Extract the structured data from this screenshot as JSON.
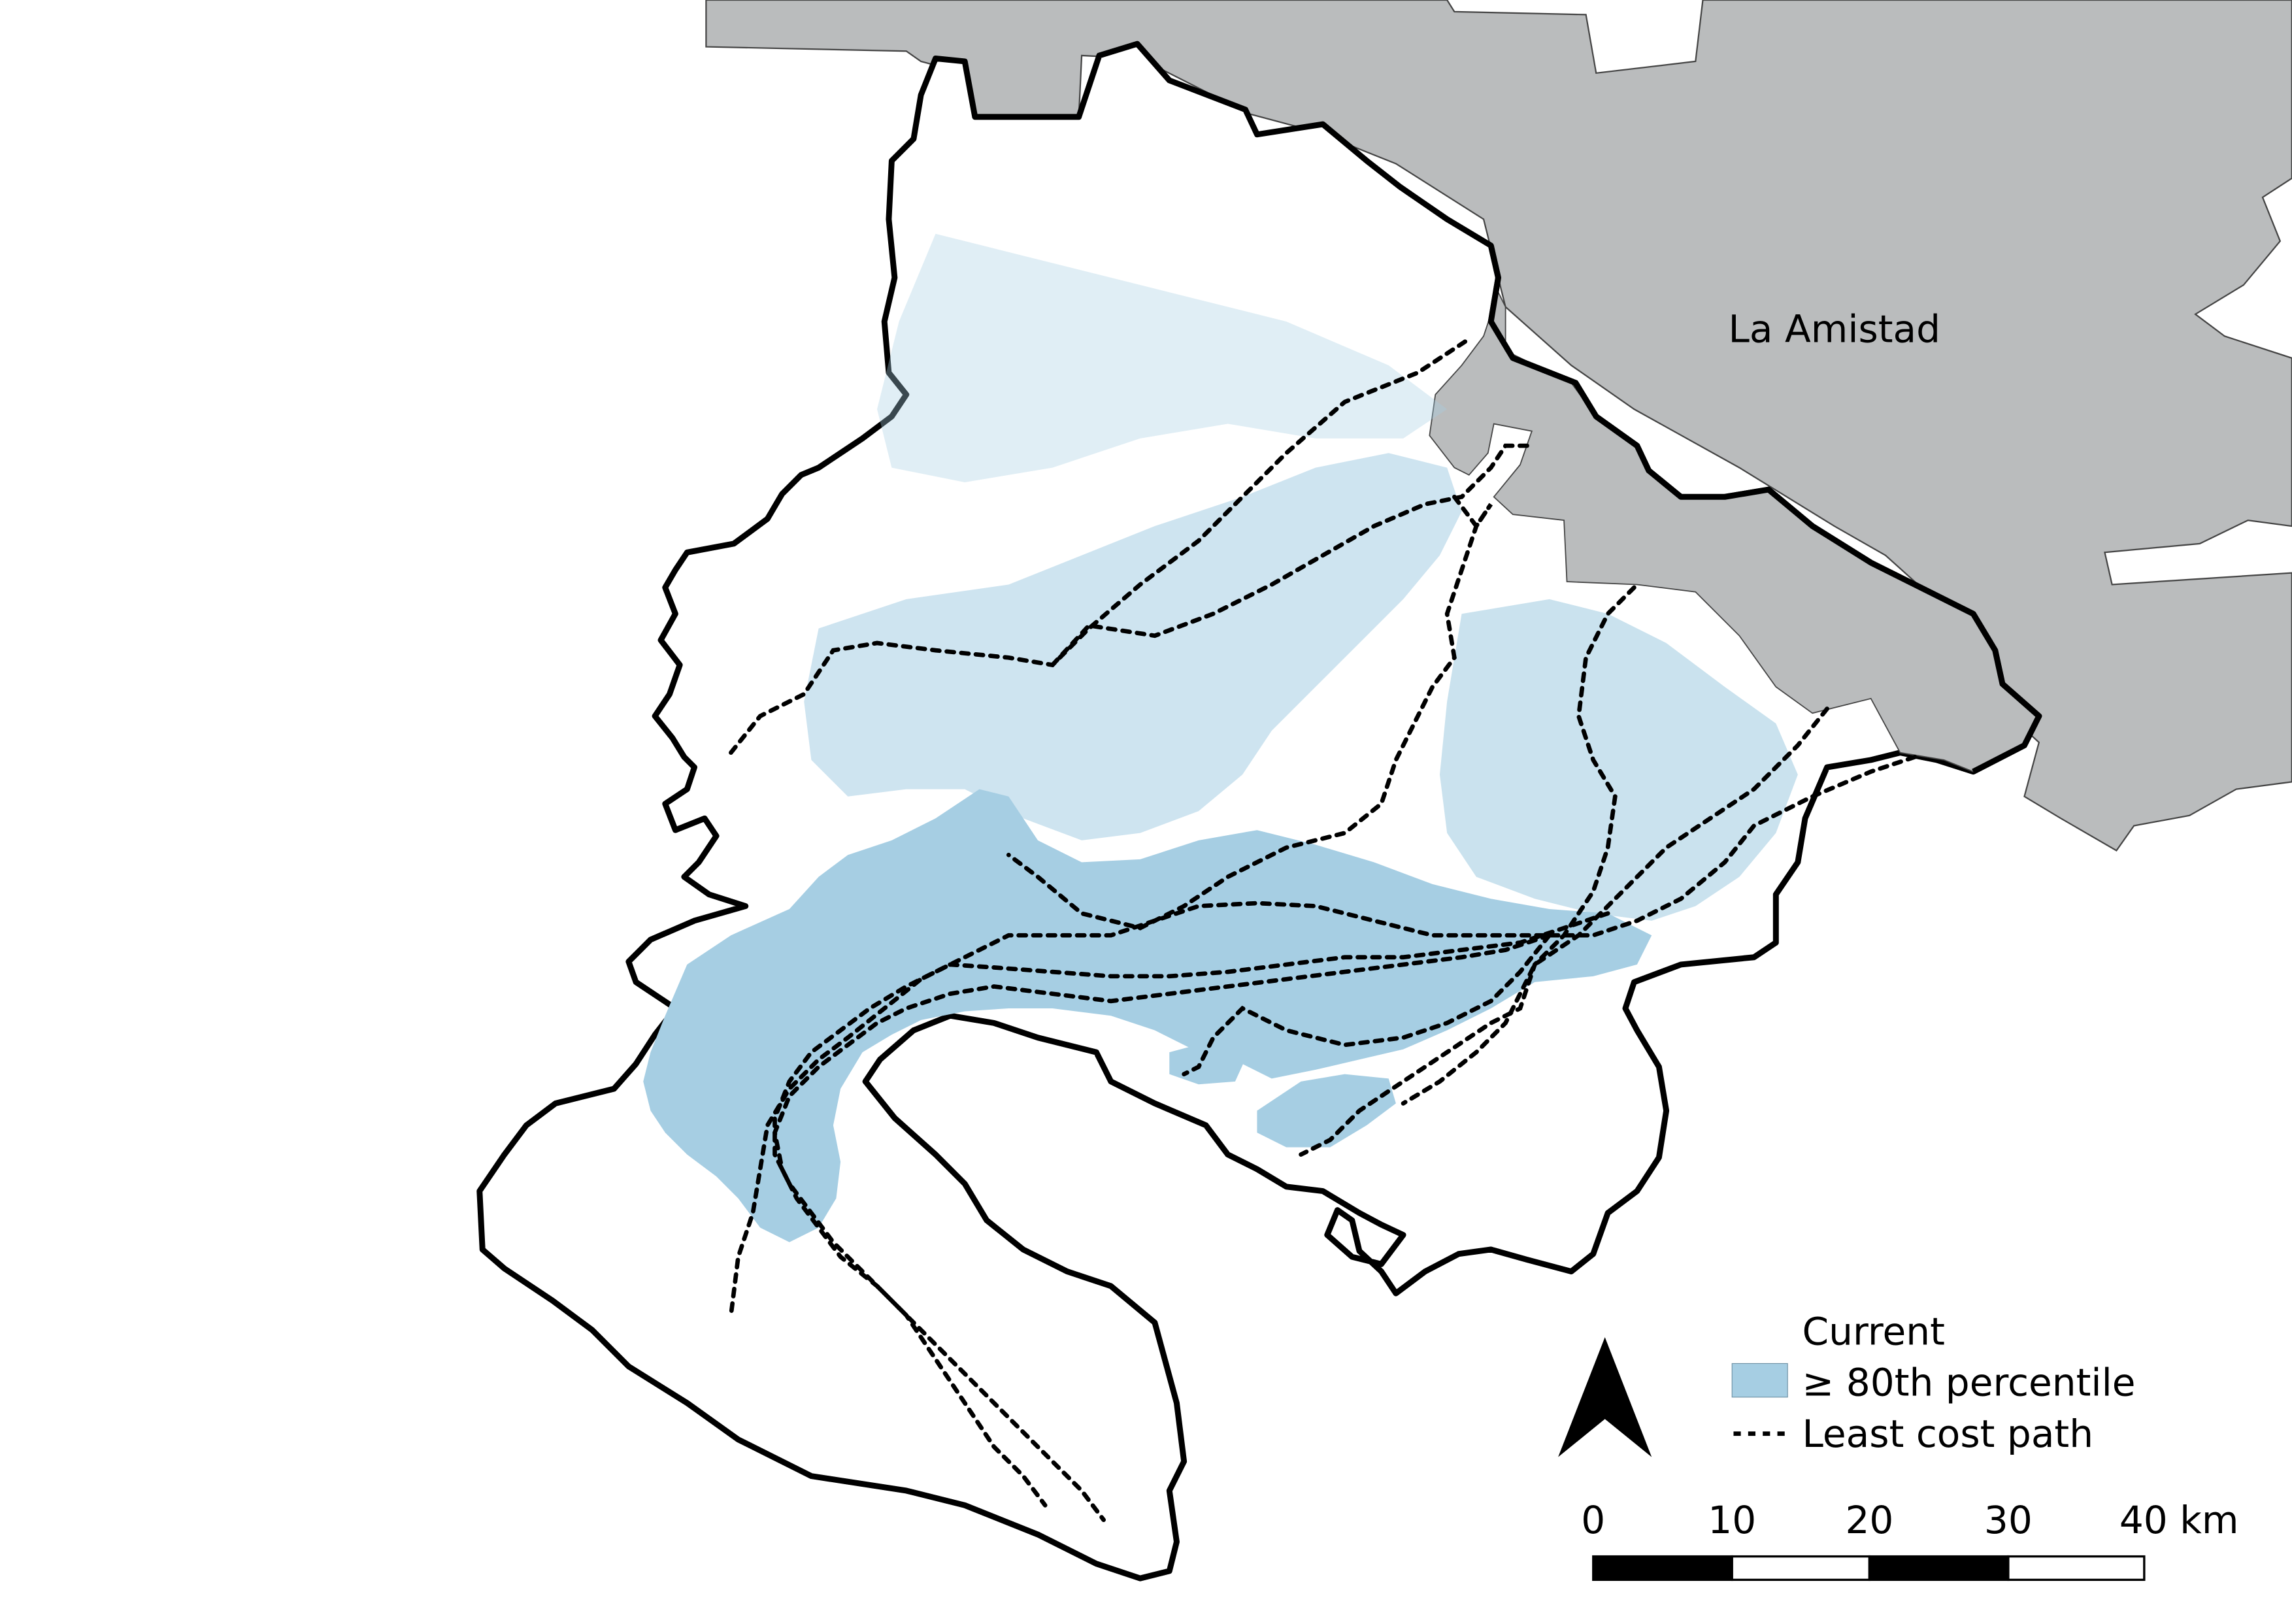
{
  "map": {
    "region_label": "La Amistad",
    "legend": {
      "title": "Current",
      "items": [
        {
          "label": "≥ 80th percentile",
          "symbol": "fill",
          "color": "#a6cee3"
        },
        {
          "label": "Least cost path",
          "symbol": "dashed-line",
          "color": "#000000"
        }
      ]
    },
    "north_arrow": {
      "icon": "north-arrow-icon"
    },
    "scale_bar": {
      "tick_labels": [
        "0",
        "10",
        "20",
        "30",
        "40 km"
      ],
      "segments": 4
    },
    "colors": {
      "protected_area": "#babcbd",
      "study_area_border": "#000000",
      "current": "#a6cee3",
      "path": "#000000"
    }
  }
}
